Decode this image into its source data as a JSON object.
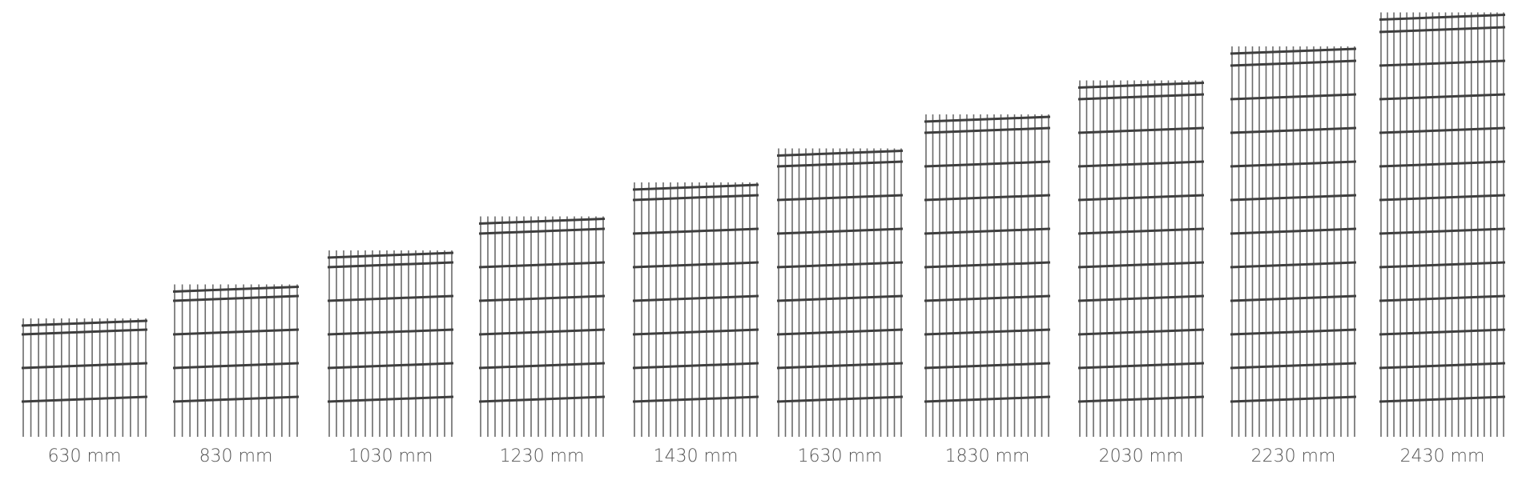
{
  "panels": [
    {
      "label": "630 mm"
    },
    {
      "label": "830 mm"
    },
    {
      "label": "1030 mm"
    },
    {
      "label": "1230 mm"
    },
    {
      "label": "1430 mm"
    },
    {
      "label": "1630 mm"
    },
    {
      "label": "1830 mm"
    },
    {
      "label": "2030 mm"
    },
    {
      "label": "2230 mm"
    },
    {
      "label": "2430 mm"
    }
  ]
}
